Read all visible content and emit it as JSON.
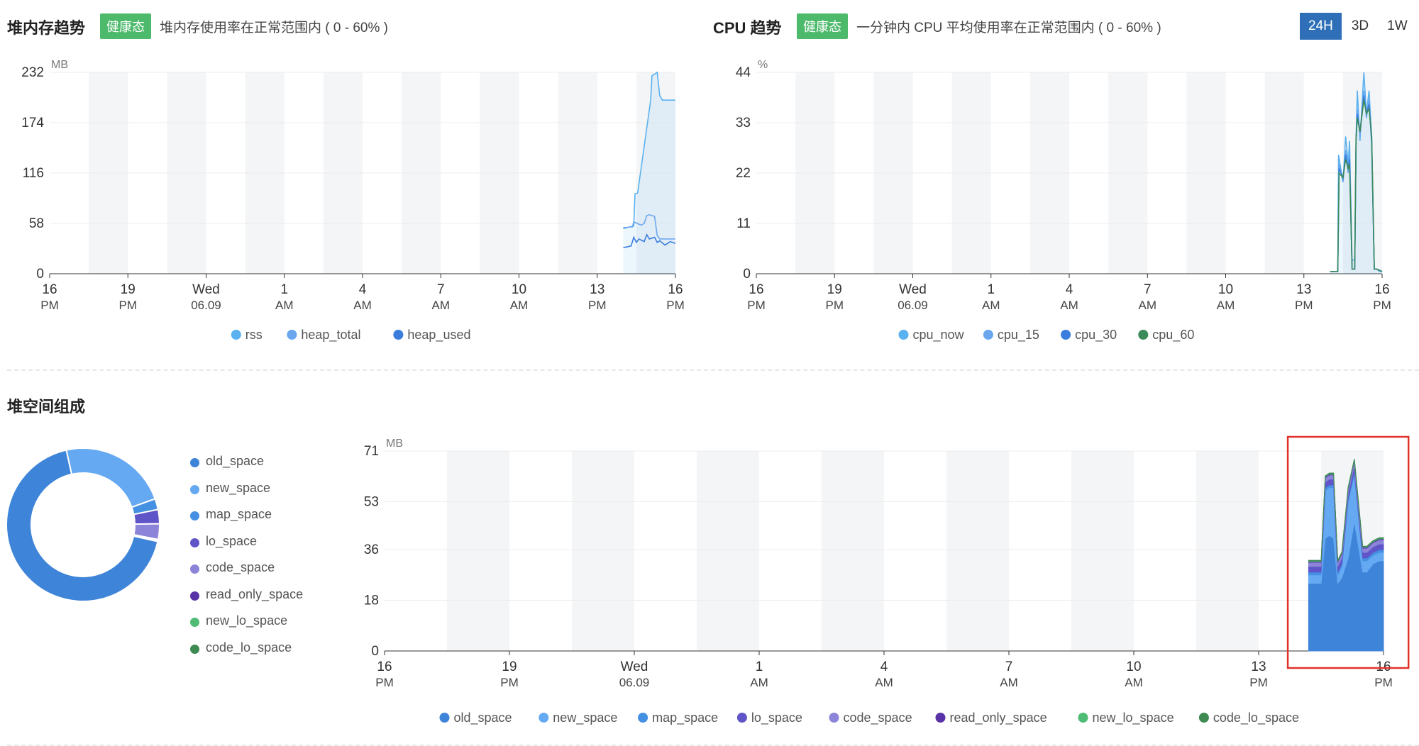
{
  "memory": {
    "title": "堆内存趋势",
    "badge": "健康态",
    "desc": "堆内存使用率在正常范围内 ( 0 - 60% )"
  },
  "cpu": {
    "title": "CPU 趋势",
    "badge": "健康态",
    "desc": "一分钟内 CPU 平均使用率在正常范围内 ( 0 - 60% )"
  },
  "ranges": {
    "items": [
      "24H",
      "3D",
      "1W"
    ],
    "active": "24H"
  },
  "heap_section": {
    "title": "堆空间组成"
  },
  "colors": {
    "badge_green": "#4cb96b",
    "active_range": "#2e6fb7",
    "highlight_box": "#e0322b"
  },
  "chart_data": [
    {
      "id": "memory-trend",
      "type": "line",
      "unit": "MB",
      "ylim": [
        0,
        232
      ],
      "yticks": [
        0,
        58,
        116,
        174,
        232
      ],
      "xlim": [
        0,
        24
      ],
      "xticks": [
        {
          "x": 0,
          "l1": "16",
          "l2": "PM"
        },
        {
          "x": 3,
          "l1": "19",
          "l2": "PM"
        },
        {
          "x": 6,
          "l1": "Wed",
          "l2": "06.09"
        },
        {
          "x": 9,
          "l1": "1",
          "l2": "AM"
        },
        {
          "x": 12,
          "l1": "4",
          "l2": "AM"
        },
        {
          "x": 15,
          "l1": "7",
          "l2": "AM"
        },
        {
          "x": 18,
          "l1": "10",
          "l2": "AM"
        },
        {
          "x": 21,
          "l1": "13",
          "l2": "PM"
        },
        {
          "x": 24,
          "l1": "16",
          "l2": "PM"
        }
      ],
      "series": [
        {
          "name": "rss",
          "color": "#5ab1ef",
          "area": true,
          "x": [
            22.0,
            22.4,
            22.45,
            22.55,
            23.05,
            23.1,
            23.3,
            23.4,
            23.5,
            24.0
          ],
          "y": [
            52,
            55,
            92,
            93,
            200,
            228,
            232,
            205,
            200,
            200
          ]
        },
        {
          "name": "heap_total",
          "color": "#6aa7ef",
          "x": [
            22.0,
            22.35,
            22.4,
            22.6,
            22.7,
            22.8,
            22.9,
            23.0,
            23.2,
            23.3,
            23.4,
            23.8,
            24.0
          ],
          "y": [
            53,
            54,
            60,
            57,
            56,
            58,
            67,
            68,
            66,
            44,
            40,
            40,
            40
          ]
        },
        {
          "name": "heap_used",
          "color": "#3b7ddd",
          "x": [
            22.0,
            22.3,
            22.4,
            22.5,
            22.6,
            22.8,
            22.9,
            23.0,
            23.2,
            23.3,
            23.4,
            23.6,
            23.8,
            24.0
          ],
          "y": [
            30,
            32,
            42,
            36,
            40,
            37,
            45,
            40,
            42,
            36,
            38,
            33,
            37,
            35
          ]
        }
      ],
      "legend": [
        "rss",
        "heap_total",
        "heap_used"
      ]
    },
    {
      "id": "cpu-trend",
      "type": "line",
      "unit": "%",
      "ylim": [
        0,
        44
      ],
      "yticks": [
        0,
        11,
        22,
        33,
        44
      ],
      "xlim": [
        0,
        24
      ],
      "xticks": [
        {
          "x": 0,
          "l1": "16",
          "l2": "PM"
        },
        {
          "x": 3,
          "l1": "19",
          "l2": "PM"
        },
        {
          "x": 6,
          "l1": "Wed",
          "l2": "06.09"
        },
        {
          "x": 9,
          "l1": "1",
          "l2": "AM"
        },
        {
          "x": 12,
          "l1": "4",
          "l2": "AM"
        },
        {
          "x": 15,
          "l1": "7",
          "l2": "AM"
        },
        {
          "x": 18,
          "l1": "10",
          "l2": "AM"
        },
        {
          "x": 21,
          "l1": "13",
          "l2": "PM"
        },
        {
          "x": 24,
          "l1": "16",
          "l2": "PM"
        }
      ],
      "series": [
        {
          "name": "cpu_now",
          "color": "#5ab1ef",
          "area": true,
          "x": [
            22.0,
            22.3,
            22.33,
            22.5,
            22.6,
            22.7,
            22.75,
            22.85,
            22.95,
            23.0,
            23.05,
            23.15,
            23.3,
            23.4,
            23.5,
            23.6,
            23.7,
            23.8,
            23.9,
            24.0
          ],
          "y": [
            0.5,
            0.5,
            26,
            20,
            30,
            24,
            29,
            3,
            3,
            30,
            40,
            29,
            44,
            35,
            40,
            30,
            1,
            1,
            0.5,
            0.5
          ]
        },
        {
          "name": "cpu_15",
          "color": "#6aa7ef",
          "x": [
            22.0,
            22.3,
            22.35,
            22.5,
            22.6,
            22.7,
            22.75,
            22.85,
            22.95,
            23.0,
            23.05,
            23.15,
            23.3,
            23.4,
            23.5,
            23.6,
            23.7,
            23.8,
            24.0
          ],
          "y": [
            0.5,
            0.5,
            24,
            20,
            27,
            22,
            26,
            1,
            1,
            28,
            36,
            30,
            40,
            34,
            38,
            28,
            1,
            1,
            0.5
          ]
        },
        {
          "name": "cpu_30",
          "color": "#3b7ddd",
          "x": [
            22.0,
            22.3,
            22.35,
            22.5,
            22.6,
            22.7,
            22.75,
            22.85,
            22.95,
            23.0,
            23.05,
            23.15,
            23.3,
            23.4,
            23.5,
            23.6,
            23.7,
            23.8,
            24.0
          ],
          "y": [
            0.5,
            0.5,
            23,
            21,
            26,
            23,
            25,
            1,
            1,
            29,
            35,
            31,
            39,
            35,
            37,
            29,
            1,
            1,
            0.5
          ]
        },
        {
          "name": "cpu_60",
          "color": "#3a8a5a",
          "x": [
            22.0,
            22.3,
            22.35,
            22.5,
            22.6,
            22.7,
            22.75,
            22.85,
            22.95,
            23.0,
            23.05,
            23.15,
            23.3,
            23.4,
            23.5,
            23.6,
            23.7,
            23.8,
            24.0
          ],
          "y": [
            0.5,
            0.5,
            22,
            21,
            25,
            23,
            24,
            1,
            1,
            30,
            34,
            31,
            38,
            35,
            36,
            30,
            1,
            1,
            0.5
          ]
        }
      ],
      "legend": [
        "cpu_now",
        "cpu_15",
        "cpu_30",
        "cpu_60"
      ]
    },
    {
      "id": "heap-donut",
      "type": "pie",
      "donut": true,
      "legend": [
        {
          "name": "old_space",
          "color": "#3e84d8",
          "value": 68.0
        },
        {
          "name": "new_space",
          "color": "#64a9f2",
          "value": 23.0
        },
        {
          "name": "map_space",
          "color": "#4490e3",
          "value": 2.3
        },
        {
          "name": "lo_space",
          "color": "#5f55c8",
          "value": 3.0
        },
        {
          "name": "code_space",
          "color": "#8b84d9",
          "value": 3.3
        },
        {
          "name": "read_only_space",
          "color": "#5a32a8",
          "value": 0.2
        },
        {
          "name": "new_lo_space",
          "color": "#4ebc74",
          "value": 0.1
        },
        {
          "name": "code_lo_space",
          "color": "#3d8a52",
          "value": 0.1
        }
      ]
    },
    {
      "id": "heap-composition",
      "type": "area",
      "stacked": true,
      "unit": "MB",
      "ylim": [
        0,
        71
      ],
      "yticks": [
        0,
        18,
        36,
        53,
        71
      ],
      "xlim": [
        0,
        24
      ],
      "xticks": [
        {
          "x": 0,
          "l1": "16",
          "l2": "PM"
        },
        {
          "x": 3,
          "l1": "19",
          "l2": "PM"
        },
        {
          "x": 6,
          "l1": "Wed",
          "l2": "06.09"
        },
        {
          "x": 9,
          "l1": "1",
          "l2": "AM"
        },
        {
          "x": 12,
          "l1": "4",
          "l2": "AM"
        },
        {
          "x": 15,
          "l1": "7",
          "l2": "AM"
        },
        {
          "x": 18,
          "l1": "10",
          "l2": "AM"
        },
        {
          "x": 21,
          "l1": "13",
          "l2": "PM"
        },
        {
          "x": 24,
          "l1": "16",
          "l2": "PM"
        }
      ],
      "x": [
        22.2,
        22.45,
        22.5,
        22.6,
        22.7,
        22.8,
        22.9,
        23.0,
        23.15,
        23.3,
        23.5,
        23.6,
        23.75,
        23.9,
        24.0
      ],
      "series": [
        {
          "name": "old_space",
          "color": "#3e84d8",
          "values": [
            24,
            24,
            24,
            40,
            41,
            40,
            24,
            26,
            33,
            46,
            28,
            28,
            31,
            32,
            32
          ]
        },
        {
          "name": "new_space",
          "color": "#64a9f2",
          "values": [
            3,
            3,
            3,
            17,
            17,
            18,
            3,
            4,
            20,
            17,
            4,
            4,
            3,
            3,
            3
          ]
        },
        {
          "name": "map_space",
          "color": "#4490e3",
          "values": [
            1,
            1,
            1,
            1,
            1,
            1,
            1,
            1,
            1,
            1,
            1,
            1,
            1,
            1,
            1
          ]
        },
        {
          "name": "lo_space",
          "color": "#5f55c8",
          "values": [
            2,
            2,
            2,
            2,
            2,
            2,
            2,
            2,
            2,
            2,
            2,
            2,
            2,
            2,
            2
          ]
        },
        {
          "name": "code_space",
          "color": "#8b84d9",
          "values": [
            1.5,
            1.5,
            1.5,
            1.5,
            1.5,
            1.5,
            1.5,
            1.5,
            1.5,
            1.5,
            1.5,
            1.5,
            1.5,
            1.5,
            1.5
          ]
        },
        {
          "name": "read_only_space",
          "color": "#5a32a8",
          "values": [
            0.3,
            0.3,
            0.3,
            0.3,
            0.3,
            0.3,
            0.3,
            0.3,
            0.3,
            0.3,
            0.3,
            0.3,
            0.3,
            0.3,
            0.3
          ]
        },
        {
          "name": "new_lo_space",
          "color": "#4ebc74",
          "values": [
            0.2,
            0.2,
            0.2,
            0.2,
            0.2,
            0.2,
            0.2,
            0.2,
            0.2,
            0.2,
            0.2,
            0.2,
            0.2,
            0.2,
            0.2
          ]
        },
        {
          "name": "code_lo_space",
          "color": "#3d8a52",
          "values": [
            0.2,
            0.2,
            0.2,
            0.2,
            0.2,
            0.2,
            0.2,
            0.2,
            0.2,
            0.2,
            0.2,
            0.2,
            0.2,
            0.2,
            0.2
          ]
        }
      ],
      "legend": [
        "old_space",
        "new_space",
        "map_space",
        "lo_space",
        "code_space",
        "read_only_space",
        "new_lo_space",
        "code_lo_space"
      ],
      "highlight": {
        "x_range": [
          21.7,
          24.6
        ]
      }
    }
  ]
}
